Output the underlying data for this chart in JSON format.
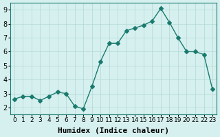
{
  "x": [
    0,
    1,
    2,
    3,
    4,
    5,
    6,
    7,
    8,
    9,
    10,
    11,
    12,
    13,
    14,
    15,
    16,
    17,
    18,
    19,
    20,
    21,
    22,
    23
  ],
  "y": [
    2.6,
    2.8,
    2.8,
    2.5,
    2.8,
    3.1,
    3.0,
    2.1,
    1.9,
    3.5,
    5.3,
    6.6,
    6.6,
    7.5,
    7.7,
    7.9,
    8.2,
    9.1,
    8.1,
    7.0,
    6.0,
    6.0,
    5.8,
    3.3
  ],
  "line_color": "#1a7a6e",
  "marker": "D",
  "marker_size": 3,
  "bg_color": "#d6f0ef",
  "grid_color": "#b0d8d5",
  "xlabel": "Humidex (Indice chaleur)",
  "xlim": [
    -0.5,
    23.5
  ],
  "ylim": [
    1.5,
    9.5
  ],
  "yticks": [
    2,
    3,
    4,
    5,
    6,
    7,
    8,
    9
  ],
  "tick_fontsize": 7,
  "xlabel_fontsize": 8
}
